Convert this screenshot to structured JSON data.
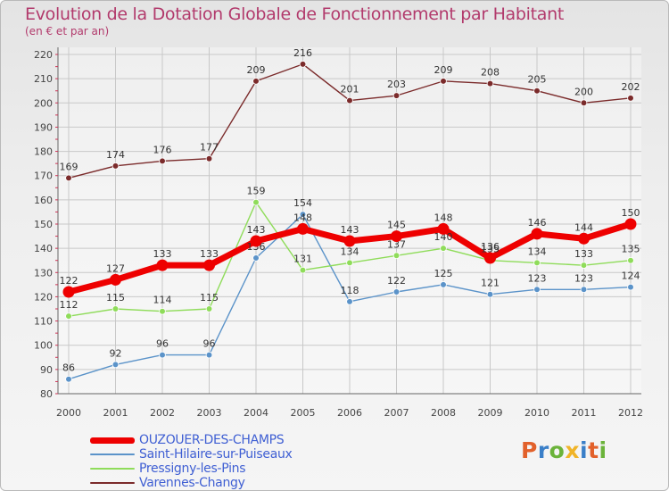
{
  "header": {
    "title": "Evolution de la Dotation Globale de Fonctionnement par Habitant",
    "subtitle": "(en € et par an)"
  },
  "logo": {
    "text": "Proxiti",
    "colors": [
      "#e2612b",
      "#3a7fc8",
      "#6bb33a",
      "#f0b428",
      "#3a7fc8",
      "#e2612b",
      "#6bb33a"
    ]
  },
  "chart_data": {
    "type": "line",
    "title": "Evolution de la Dotation Globale de Fonctionnement par Habitant",
    "subtitle": "(en € et par an)",
    "xlabel": "",
    "ylabel": "",
    "ylim": [
      80,
      220
    ],
    "ytick_step": 10,
    "grid": true,
    "legend_position": "bottom-left",
    "categories": [
      "2000",
      "2001",
      "2002",
      "2003",
      "2004",
      "2005",
      "2006",
      "2007",
      "2008",
      "2009",
      "2010",
      "2011",
      "2012"
    ],
    "series": [
      {
        "name": "Varennes-Changy",
        "color": "#7b2b2b",
        "emphasis": false,
        "values": [
          169,
          174,
          176,
          177,
          209,
          216,
          201,
          203,
          209,
          208,
          205,
          200,
          202
        ]
      },
      {
        "name": "Saint-Hilaire-sur-Puiseaux",
        "color": "#5b93c9",
        "emphasis": false,
        "values": [
          86,
          92,
          96,
          96,
          136,
          154,
          118,
          122,
          125,
          121,
          123,
          123,
          124
        ]
      },
      {
        "name": "Pressigny-les-Pins",
        "color": "#8fdc5a",
        "emphasis": false,
        "values": [
          112,
          115,
          114,
          115,
          159,
          131,
          134,
          137,
          140,
          135,
          134,
          133,
          135
        ]
      },
      {
        "name": "OUZOUER-DES-CHAMPS",
        "color": "#ee0000",
        "emphasis": true,
        "values": [
          122,
          127,
          133,
          133,
          143,
          148,
          143,
          145,
          148,
          136,
          146,
          144,
          150
        ]
      }
    ],
    "legend_order": [
      "OUZOUER-DES-CHAMPS",
      "Saint-Hilaire-sur-Puiseaux",
      "Pressigny-les-Pins",
      "Varennes-Changy"
    ]
  }
}
